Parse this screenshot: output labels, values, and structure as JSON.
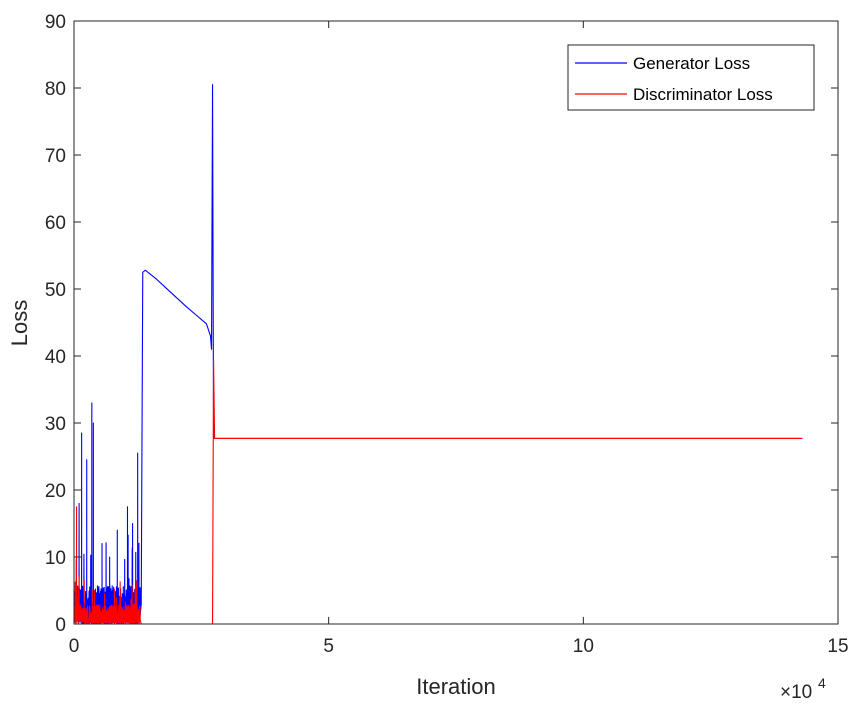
{
  "chart_data": {
    "type": "line",
    "title": "",
    "xlabel": "Iteration",
    "ylabel": "Loss",
    "x_multiplier_label": "×10",
    "x_multiplier_exp": "4",
    "xlim": [
      0,
      15
    ],
    "ylim": [
      0,
      90
    ],
    "xticks": [
      "0",
      "5",
      "10",
      "15"
    ],
    "yticks": [
      "0",
      "10",
      "20",
      "30",
      "40",
      "50",
      "60",
      "70",
      "80",
      "90"
    ],
    "grid": false,
    "legend_position": "top-right",
    "x_units": "x10^4 iterations",
    "series": [
      {
        "name": "Generator Loss",
        "color": "#0000ff",
        "noisy_segment": {
          "x_range": [
            0.0,
            1.3
          ],
          "base": 3,
          "peaks": [
            [
              0.15,
              28.5
            ],
            [
              0.25,
              24.5
            ],
            [
              0.35,
              33
            ],
            [
              0.38,
              30
            ],
            [
              0.1,
              18
            ],
            [
              0.55,
              12
            ],
            [
              0.7,
              10
            ],
            [
              0.85,
              14
            ],
            [
              1.05,
              17.5
            ],
            [
              1.15,
              15
            ],
            [
              1.25,
              25.5
            ]
          ]
        },
        "points": [
          [
            1.32,
            3
          ],
          [
            1.35,
            52.5
          ],
          [
            1.4,
            52.8
          ],
          [
            1.6,
            51.6
          ],
          [
            1.8,
            50.2
          ],
          [
            2.0,
            48.8
          ],
          [
            2.2,
            47.4
          ],
          [
            2.4,
            46.1
          ],
          [
            2.6,
            44.8
          ],
          [
            2.68,
            43.0
          ],
          [
            2.7,
            41.0
          ],
          [
            2.72,
            80.5
          ],
          [
            2.74,
            27.7
          ],
          [
            14.3,
            27.7
          ]
        ]
      },
      {
        "name": "Discriminator Loss",
        "color": "#ff0000",
        "noisy_segment": {
          "x_range": [
            0.0,
            1.3
          ],
          "base": 1.5,
          "peaks": [
            [
              0.05,
              17.5
            ],
            [
              0.1,
              7
            ],
            [
              0.2,
              6.5
            ],
            [
              0.4,
              5
            ],
            [
              0.6,
              4.5
            ],
            [
              0.9,
              4
            ],
            [
              1.2,
              5
            ]
          ]
        },
        "points": [
          [
            1.32,
            0
          ],
          [
            2.72,
            0
          ],
          [
            2.74,
            39.5
          ],
          [
            2.76,
            27.7
          ],
          [
            14.3,
            27.7
          ]
        ]
      }
    ]
  }
}
